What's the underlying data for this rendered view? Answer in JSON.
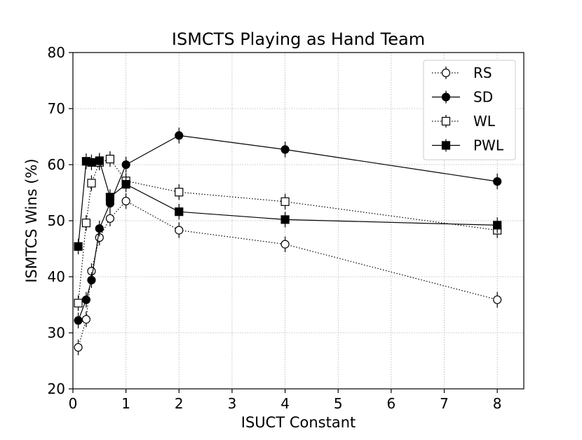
{
  "chart_data": {
    "type": "line",
    "title": "ISMCTS Playing as Hand Team",
    "xlabel": "ISUCT Constant",
    "ylabel": "ISMTCS Wins (%)",
    "xlim": [
      0,
      8.5
    ],
    "ylim": [
      20,
      80
    ],
    "x_ticks": [
      0,
      1,
      2,
      3,
      4,
      5,
      6,
      7,
      8
    ],
    "x_tick_labels": [
      "0",
      "1",
      "2",
      "3",
      "4",
      "5",
      "6",
      "7",
      "8"
    ],
    "y_ticks": [
      20,
      30,
      40,
      50,
      60,
      70,
      80
    ],
    "y_tick_labels": [
      "20",
      "30",
      "40",
      "50",
      "60",
      "70",
      "80"
    ],
    "grid": true,
    "legend_position": "top-right",
    "series": [
      {
        "name": "RS",
        "marker": "circle-open",
        "line_style": "dotted",
        "x": [
          0.1,
          0.25,
          0.35,
          0.5,
          0.7,
          1,
          2,
          4,
          8
        ],
        "y": [
          27.4,
          32.4,
          41.0,
          47.0,
          50.4,
          53.5,
          48.3,
          45.8,
          35.9
        ],
        "error": [
          1.4,
          1.4,
          1.4,
          1.4,
          1.4,
          1.4,
          1.4,
          1.4,
          1.4
        ]
      },
      {
        "name": "SD",
        "marker": "circle-filled",
        "line_style": "solid",
        "x": [
          0.1,
          0.25,
          0.35,
          0.5,
          0.7,
          1,
          2,
          4,
          8
        ],
        "y": [
          32.2,
          35.9,
          39.4,
          48.6,
          53.1,
          60.0,
          65.2,
          62.7,
          57.0
        ],
        "error": [
          1.4,
          1.4,
          1.4,
          1.4,
          1.4,
          1.4,
          1.4,
          1.4,
          1.4
        ]
      },
      {
        "name": "WL",
        "marker": "square-open",
        "line_style": "dotted",
        "x": [
          0.1,
          0.25,
          0.35,
          0.5,
          0.7,
          1,
          2,
          4,
          8
        ],
        "y": [
          35.3,
          49.6,
          56.7,
          60.4,
          61.0,
          57.1,
          55.1,
          53.4,
          48.3
        ],
        "error": [
          1.4,
          1.4,
          1.4,
          1.4,
          1.4,
          1.4,
          1.4,
          1.4,
          1.4
        ]
      },
      {
        "name": "PWL",
        "marker": "square-filled",
        "line_style": "solid",
        "x": [
          0.1,
          0.25,
          0.35,
          0.5,
          0.7,
          1,
          2,
          4,
          8
        ],
        "y": [
          45.4,
          60.6,
          60.4,
          60.7,
          54.2,
          56.5,
          51.6,
          50.2,
          49.2
        ],
        "error": [
          1.4,
          1.4,
          1.4,
          1.4,
          1.4,
          1.4,
          1.4,
          1.4,
          1.4
        ]
      }
    ]
  }
}
